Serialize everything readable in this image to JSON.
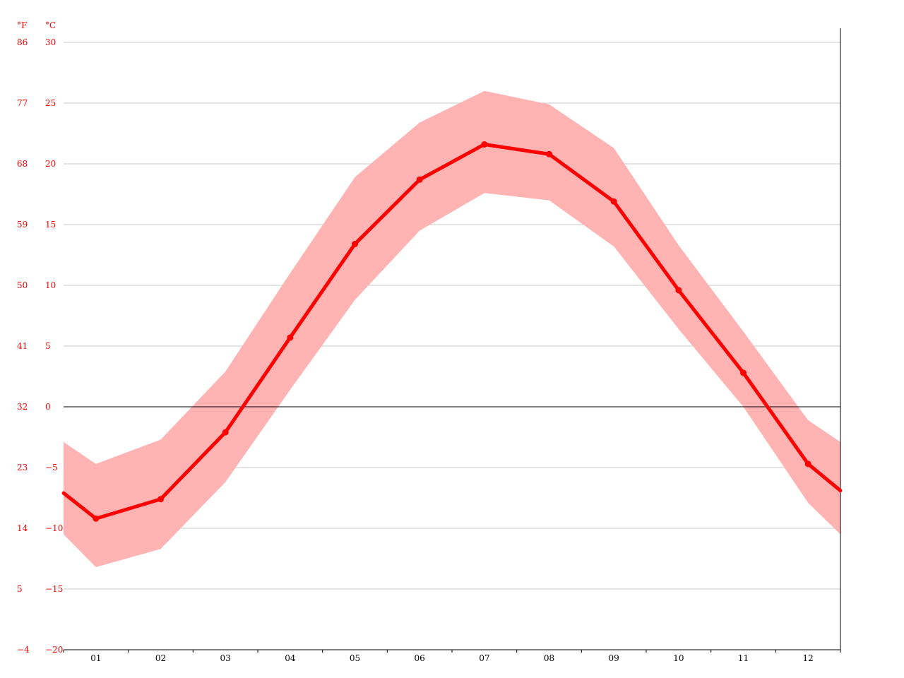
{
  "chart_data": {
    "type": "line",
    "title": "",
    "xlabel": "",
    "ylabel": "",
    "units": {
      "fahrenheit": "°F",
      "celsius": "°C"
    },
    "categories": [
      "01",
      "02",
      "03",
      "04",
      "05",
      "06",
      "07",
      "08",
      "09",
      "10",
      "11",
      "12"
    ],
    "ylim": [
      -20,
      30
    ],
    "y_ticks_celsius": [
      "30",
      "25",
      "20",
      "15",
      "10",
      "5",
      "0",
      "−5",
      "−10",
      "−15",
      "−20"
    ],
    "y_ticks_fahrenheit": [
      "86",
      "77",
      "68",
      "59",
      "50",
      "41",
      "32",
      "23",
      "14",
      "5",
      "−4"
    ],
    "grid": true,
    "series": [
      {
        "values": [
          -9.2,
          -7.6,
          -2.1,
          5.7,
          13.4,
          18.7,
          21.6,
          20.8,
          16.9,
          9.6,
          2.8,
          -4.7
        ],
        "low": [
          -13.2,
          -11.7,
          -6.2,
          1.4,
          8.8,
          14.5,
          17.6,
          17.0,
          13.2,
          6.4,
          0.0,
          -7.9
        ],
        "high": [
          -4.7,
          -2.7,
          2.9,
          11.0,
          18.9,
          23.4,
          26.0,
          24.9,
          21.3,
          13.3,
          6.2,
          -1.1
        ]
      }
    ],
    "edge_values": {
      "left": -7.1,
      "right": -6.9,
      "left_low": -10.5,
      "left_high": -2.9,
      "right_low": -10.5,
      "right_high": -2.9
    },
    "colors": {
      "line": "#ff0000",
      "band": "#ffb3b3",
      "grid": "#c8c8c8",
      "zero_line": "#000000",
      "axis": "#000000"
    }
  }
}
